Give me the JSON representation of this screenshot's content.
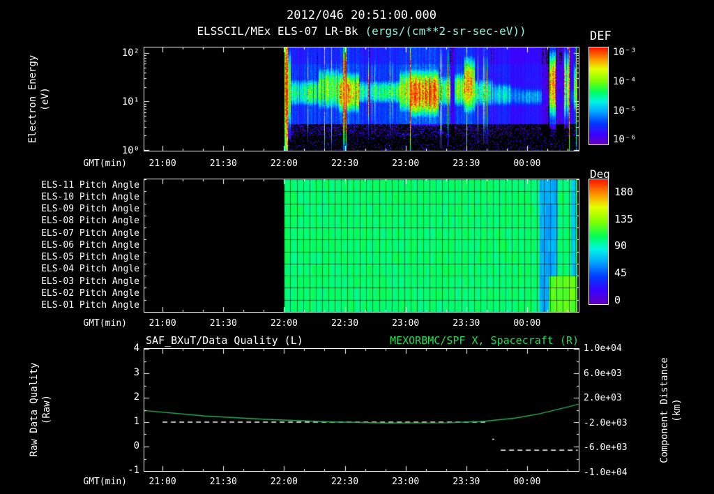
{
  "colors": {
    "background": "#000000",
    "text": "#ffffff",
    "units_text": "#8cf5e6",
    "right_axis_title": "#22dd55",
    "quality_line": "#ffffff",
    "distance_line": "#2fae55"
  },
  "header": {
    "timestamp": "2012/046 20:51:00.000",
    "instrument": "ELSSCIL/MEx ELS-07 LR-Bk",
    "units": "(ergs/(cm**2-sr-sec-eV))"
  },
  "time_axis": {
    "label": "GMT(min)",
    "start": "20:51",
    "total_minutes": 214.5,
    "ticks": [
      {
        "label": "21:00",
        "min": 9
      },
      {
        "label": "21:30",
        "min": 39
      },
      {
        "label": "22:00",
        "min": 69
      },
      {
        "label": "22:30",
        "min": 99
      },
      {
        "label": "23:00",
        "min": 129
      },
      {
        "label": "23:30",
        "min": 159
      },
      {
        "label": "00:00",
        "min": 189
      }
    ]
  },
  "panel_energy": {
    "ylabel_line1": "Electron Energy",
    "ylabel_line2": "(eV)",
    "y_ticks": [
      "10²",
      "10¹",
      "10⁰"
    ],
    "colorbar_title": "DEF",
    "colorbar_ticks": [
      "10⁻³",
      "10⁻⁴",
      "10⁻⁵",
      "10⁻⁶"
    ]
  },
  "panel_pitch": {
    "row_labels": [
      "ELS-11 Pitch Angle",
      "ELS-10 Pitch Angle",
      "ELS-09 Pitch Angle",
      "ELS-08 Pitch Angle",
      "ELS-07 Pitch Angle",
      "ELS-06 Pitch Angle",
      "ELS-05 Pitch Angle",
      "ELS-04 Pitch Angle",
      "ELS-03 Pitch Angle",
      "ELS-02 Pitch Angle",
      "ELS-01 Pitch Angle"
    ],
    "colorbar_title": "Deg",
    "colorbar_ticks": [
      "180",
      "135",
      "90",
      "45",
      "0"
    ]
  },
  "panel_series": {
    "title_left": "SAF_BXuT/Data Quality (L)",
    "title_right": "MEXORBMC/SPF X, Spacecraft (R)",
    "ylabel_left_line1": "Raw Data Quality",
    "ylabel_left_line2": "(Raw)",
    "ylabel_right_line1": "Component Distance",
    "ylabel_right_line2": "(km)",
    "left_ticks": [
      "4",
      "3",
      "2",
      "1",
      "0",
      "-1"
    ],
    "right_ticks": [
      "1.0e+04",
      "6.0e+03",
      "2.0e+03",
      "-2.0e+03",
      "-6.0e+03",
      "-1.0e+04"
    ]
  },
  "chart_data": [
    {
      "type": "heatmap",
      "name": "electron-energy-spectrogram",
      "title": "ELSSCIL/MEx ELS-07 LR-Bk",
      "x_axis": {
        "label": "GMT(min)",
        "start": "20:51",
        "end": "00:25"
      },
      "y_axis": {
        "label": "Electron Energy (eV)",
        "scale": "log",
        "range": [
          1,
          130
        ]
      },
      "z_axis": {
        "label": "DEF ergs/(cm**2-sr-sec-eV)",
        "scale": "log",
        "range": [
          1e-06,
          0.001
        ]
      },
      "data_start_min": 69,
      "data_end_min": 213.5,
      "colormap_stops": [
        [
          0.0,
          100,
          0,
          190
        ],
        [
          0.1,
          60,
          0,
          255
        ],
        [
          0.22,
          0,
          60,
          255
        ],
        [
          0.34,
          0,
          170,
          255
        ],
        [
          0.44,
          0,
          245,
          230
        ],
        [
          0.54,
          0,
          255,
          90
        ],
        [
          0.66,
          130,
          255,
          0
        ],
        [
          0.78,
          230,
          255,
          0
        ],
        [
          0.88,
          255,
          150,
          0
        ],
        [
          1.0,
          255,
          20,
          0
        ]
      ],
      "segments": [
        {
          "t0": 69,
          "t1": 72,
          "e_lo": 3,
          "e_hi": 110,
          "peak": 0.62,
          "bg": 0.22
        },
        {
          "t0": 72,
          "t1": 86,
          "e_lo": 8,
          "e_hi": 30,
          "peak": 0.5,
          "bg": 0.2
        },
        {
          "t0": 86,
          "t1": 96,
          "e_lo": 7,
          "e_hi": 50,
          "peak": 0.62,
          "bg": 0.22
        },
        {
          "t0": 96,
          "t1": 106,
          "e_lo": 6,
          "e_hi": 40,
          "peak": 0.78,
          "bg": 0.24
        },
        {
          "t0": 106,
          "t1": 126,
          "e_lo": 9,
          "e_hi": 28,
          "peak": 0.5,
          "bg": 0.2
        },
        {
          "t0": 126,
          "t1": 131,
          "e_lo": 6,
          "e_hi": 45,
          "peak": 0.68,
          "bg": 0.24
        },
        {
          "t0": 131,
          "t1": 145,
          "e_lo": 5,
          "e_hi": 45,
          "peak": 0.9,
          "bg": 0.26
        },
        {
          "t0": 145,
          "t1": 151,
          "e_lo": 8,
          "e_hi": 35,
          "peak": 0.55,
          "bg": 0.2
        },
        {
          "t0": 151,
          "t1": 153,
          "e_lo": 8,
          "e_hi": 20,
          "peak": 0.1,
          "bg": 0.08
        },
        {
          "t0": 153,
          "t1": 158,
          "e_lo": 8,
          "e_hi": 40,
          "peak": 0.6,
          "bg": 0.2
        },
        {
          "t0": 158,
          "t1": 163,
          "e_lo": 6,
          "e_hi": 80,
          "peak": 0.72,
          "bg": 0.22
        },
        {
          "t0": 163,
          "t1": 172,
          "e_lo": 8,
          "e_hi": 30,
          "peak": 0.5,
          "bg": 0.18
        },
        {
          "t0": 172,
          "t1": 181,
          "e_lo": 8,
          "e_hi": 25,
          "peak": 0.4,
          "bg": 0.16
        },
        {
          "t0": 181,
          "t1": 186,
          "e_lo": 8,
          "e_hi": 22,
          "peak": 0.28,
          "bg": 0.12
        },
        {
          "t0": 186,
          "t1": 196,
          "e_lo": 8,
          "e_hi": 20,
          "peak": 0.32,
          "bg": 0.14
        },
        {
          "t0": 196,
          "t1": 200,
          "e_lo": 8,
          "e_hi": 18,
          "peak": 0.1,
          "bg": 0.07
        },
        {
          "t0": 200,
          "t1": 203,
          "e_lo": 5,
          "e_hi": 100,
          "peak": 0.8,
          "bg": 0.22
        },
        {
          "t0": 203,
          "t1": 207,
          "e_lo": 8,
          "e_hi": 18,
          "peak": 0.12,
          "bg": 0.08
        },
        {
          "t0": 207,
          "t1": 210,
          "e_lo": 5,
          "e_hi": 100,
          "peak": 0.75,
          "bg": 0.2
        },
        {
          "t0": 210,
          "t1": 212,
          "e_lo": 8,
          "e_hi": 20,
          "peak": 0.2,
          "bg": 0.1
        },
        {
          "t0": 212,
          "t1": 213.5,
          "e_lo": 6,
          "e_hi": 60,
          "peak": 0.5,
          "bg": 0.18
        }
      ]
    },
    {
      "type": "heatmap",
      "name": "pitch-angle-panel",
      "rows": [
        "ELS-11",
        "ELS-10",
        "ELS-09",
        "ELS-08",
        "ELS-07",
        "ELS-06",
        "ELS-05",
        "ELS-04",
        "ELS-03",
        "ELS-02",
        "ELS-01"
      ],
      "units": "Deg",
      "range": [
        0,
        180
      ],
      "data_start_min": 69,
      "data_end_min": 213.5,
      "base_value": 95,
      "grid_minutes": 3.125,
      "regions": [
        {
          "rows": "all",
          "t0": 195,
          "t1": 204,
          "value": 62
        },
        {
          "rows": "all",
          "t0": 210.5,
          "t1": 213,
          "value": 68
        },
        {
          "rows": [
            "ELS-03",
            "ELS-02",
            "ELS-01"
          ],
          "t0": 200,
          "t1": 213.5,
          "value": 112
        }
      ]
    },
    {
      "type": "line",
      "name": "quality-and-distance",
      "y_left": {
        "label": "Raw Data Quality (Raw)",
        "range": [
          -1,
          4
        ]
      },
      "y_right": {
        "label": "Component Distance (km)",
        "range": [
          -10000,
          10000
        ]
      },
      "series": [
        {
          "name": "SAF_BXuT/Data Quality (L)",
          "axis": "left",
          "style": "dashed",
          "color": "#ffffff",
          "segments": [
            [
              [
                9,
                1.0
              ],
              [
                170,
                1.0
              ]
            ],
            [
              [
                171.8,
                0.3
              ],
              [
                172.8,
                0.3
              ]
            ],
            [
              [
                176,
                -0.15
              ],
              [
                214,
                -0.15
              ]
            ]
          ]
        },
        {
          "name": "MEXORBMC/SPF X, Spacecraft (R)",
          "axis": "right",
          "style": "solid",
          "color": "#2fae55",
          "segments": [
            [
              [
                0,
                -100
              ],
              [
                30,
                -1000
              ],
              [
                60,
                -1550
              ],
              [
                90,
                -1950
              ],
              [
                120,
                -2150
              ],
              [
                150,
                -2100
              ],
              [
                168,
                -1850
              ],
              [
                183,
                -1350
              ],
              [
                195,
                -650
              ],
              [
                205,
                150
              ],
              [
                210,
                550
              ],
              [
                214.4,
                950
              ]
            ]
          ]
        }
      ]
    }
  ]
}
